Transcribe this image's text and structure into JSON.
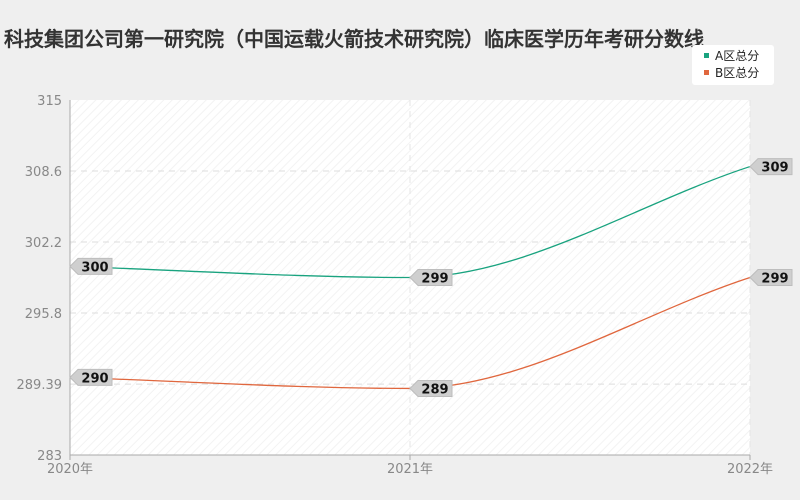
{
  "chart_data": {
    "type": "line",
    "title": "科技集团公司第一研究院（中国运载火箭技术研究院）临床医学历年考研分数线",
    "categories": [
      "2020年",
      "2021年",
      "2022年"
    ],
    "series": [
      {
        "name": "A区总分",
        "values": [
          300,
          299,
          309
        ],
        "color": "#19a37f"
      },
      {
        "name": "B区总分",
        "values": [
          290,
          289,
          299
        ],
        "color": "#e0673e"
      }
    ],
    "y_ticks": [
      "315",
      "308.6",
      "302.2",
      "295.8",
      "289.39",
      "283"
    ],
    "ylim": [
      283,
      315
    ],
    "grid": true,
    "legend_position": "top-right"
  }
}
